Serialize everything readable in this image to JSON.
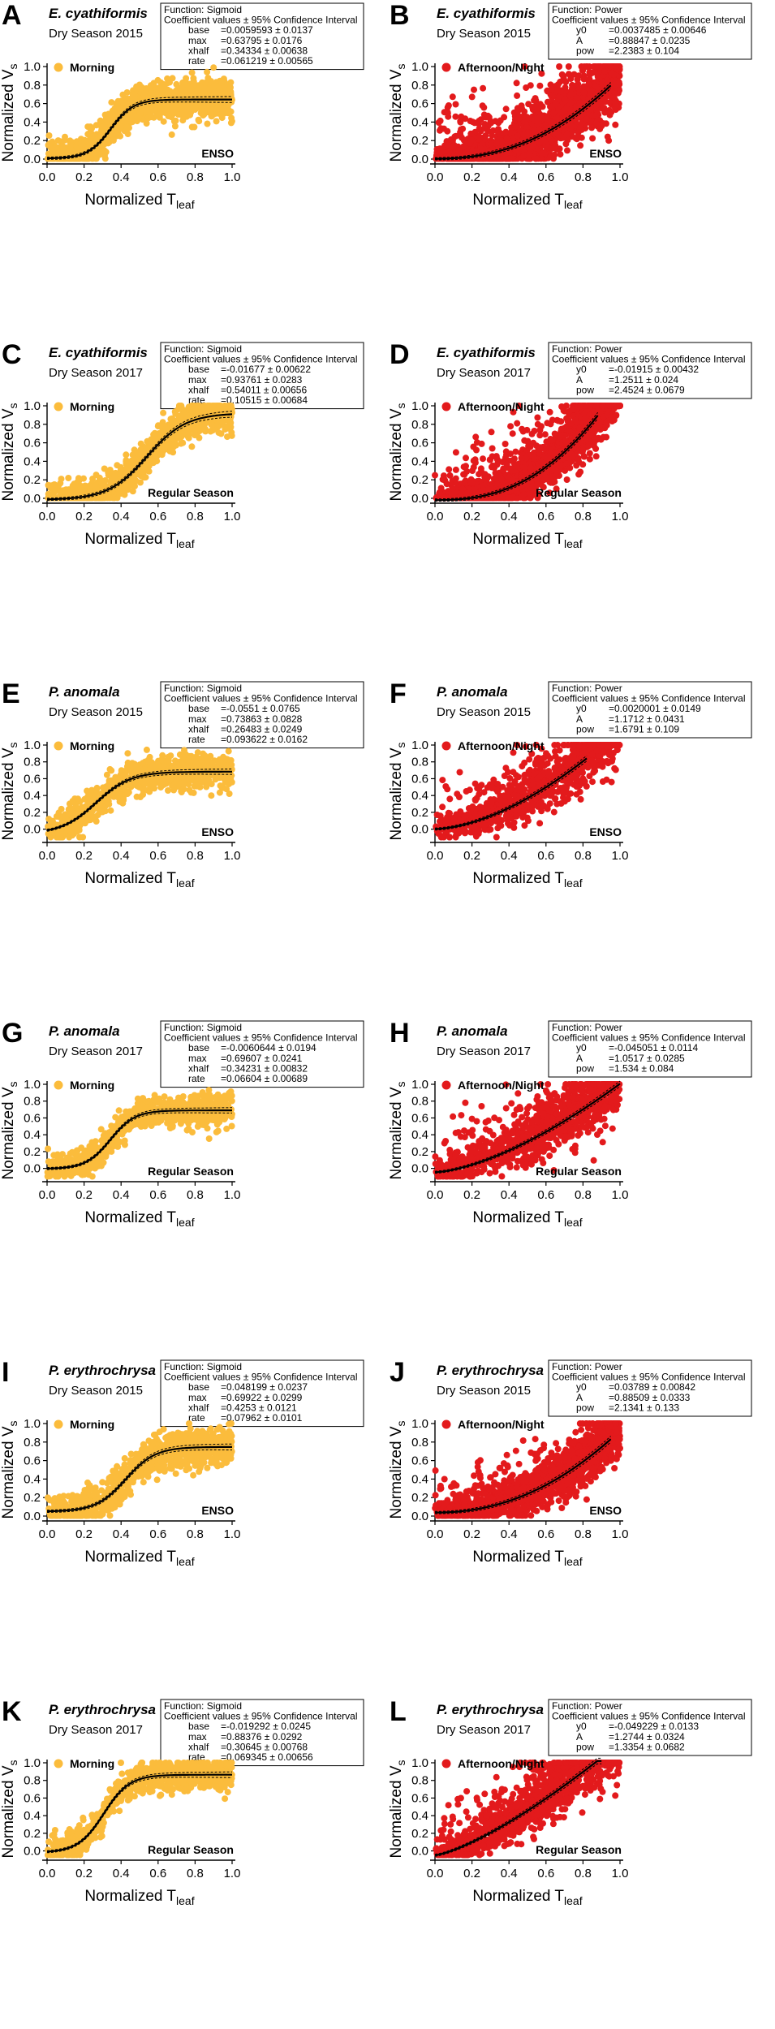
{
  "figure": {
    "xlabel_main": "Normalized T",
    "xlabel_sub": "leaf",
    "ylabel_main": "Normalized V",
    "ylabel_sub": "s",
    "fit_header": "Coefficient values ± 95% Confidence Interval",
    "colors": {
      "morning": "#fbbc3c",
      "afternoon": "#e31a1c",
      "fit": "#000000",
      "ci": "#000000"
    }
  },
  "chart_data": [
    {
      "panel": "A",
      "species": "E. cyathiformis",
      "season": "Dry Season 2015",
      "series_name": "Morning",
      "regime": "ENSO",
      "type": "scatter",
      "xlabel": "Normalized Tleaf",
      "ylabel": "Normalized Vs",
      "xlim": [
        0,
        1
      ],
      "ylim": [
        0,
        1
      ],
      "xticks": [
        "0.0",
        "0.2",
        "0.4",
        "0.6",
        "0.8",
        "1.0"
      ],
      "yticks": [
        "0.0",
        "0.2",
        "0.4",
        "0.6",
        "0.8",
        "1.0"
      ],
      "fit": {
        "function": "Sigmoid",
        "header": "Function: Sigmoid",
        "params": [
          {
            "name": "base",
            "value": "=0.0059593 ± 0.0137"
          },
          {
            "name": "max",
            "value": "=0.63795 ± 0.0176"
          },
          {
            "name": "xhalf",
            "value": "=0.34334 ± 0.00638"
          },
          {
            "name": "rate",
            "value": "=0.061219 ± 0.00565"
          }
        ],
        "coef": {
          "base": 0.0059593,
          "max": 0.63795,
          "xhalf": 0.34334,
          "rate": 0.061219
        },
        "x_range": [
          0,
          1
        ]
      },
      "scatter": {
        "n": 1300,
        "spread": 0.1,
        "seed": 11
      }
    },
    {
      "panel": "B",
      "species": "E. cyathiformis",
      "season": "Dry Season 2015",
      "series_name": "Afternoon/Night",
      "regime": "ENSO",
      "type": "scatter",
      "xlabel": "Normalized Tleaf",
      "ylabel": "Normalized Vs",
      "xlim": [
        0,
        1
      ],
      "ylim": [
        0,
        1
      ],
      "xticks": [
        "0.0",
        "0.2",
        "0.4",
        "0.6",
        "0.8",
        "1.0"
      ],
      "yticks": [
        "0.0",
        "0.2",
        "0.4",
        "0.6",
        "0.8",
        "1.0"
      ],
      "fit": {
        "function": "Power",
        "header": "Function: Power",
        "params": [
          {
            "name": "y0",
            "value": "=0.0037485 ± 0.00646"
          },
          {
            "name": "A",
            "value": "=0.88847 ± 0.0235"
          },
          {
            "name": "pow",
            "value": "=2.2383 ± 0.104"
          }
        ],
        "coef": {
          "y0": 0.0037485,
          "A": 0.88847,
          "pow": 2.2383
        },
        "x_range": [
          0,
          0.95
        ]
      },
      "scatter": {
        "n": 1800,
        "spread": 0.13,
        "seed": 22
      }
    },
    {
      "panel": "C",
      "species": "E. cyathiformis",
      "season": "Dry Season 2017",
      "series_name": "Morning",
      "regime": "Regular Season",
      "type": "scatter",
      "xlabel": "Normalized Tleaf",
      "ylabel": "Normalized Vs",
      "xlim": [
        0,
        1
      ],
      "ylim": [
        0,
        1
      ],
      "xticks": [
        "0.0",
        "0.2",
        "0.4",
        "0.6",
        "0.8",
        "1.0"
      ],
      "yticks": [
        "0.0",
        "0.2",
        "0.4",
        "0.6",
        "0.8",
        "1.0"
      ],
      "fit": {
        "function": "Sigmoid",
        "header": "Function: Sigmoid",
        "params": [
          {
            "name": "base",
            "value": "=-0.01677 ± 0.00622"
          },
          {
            "name": "max",
            "value": "=0.93761 ± 0.0283"
          },
          {
            "name": "xhalf",
            "value": "=0.54011 ± 0.00656"
          },
          {
            "name": "rate",
            "value": "=0.10515 ± 0.00684"
          }
        ],
        "coef": {
          "base": -0.01677,
          "max": 0.93761,
          "xhalf": 0.54011,
          "rate": 0.10515
        },
        "x_range": [
          0,
          1
        ]
      },
      "scatter": {
        "n": 1100,
        "spread": 0.09,
        "seed": 33
      }
    },
    {
      "panel": "D",
      "species": "E. cyathiformis",
      "season": "Dry Season 2017",
      "series_name": "Afternoon/Night",
      "regime": "Regular Season",
      "type": "scatter",
      "xlabel": "Normalized Tleaf",
      "ylabel": "Normalized Vs",
      "xlim": [
        0,
        1
      ],
      "ylim": [
        0,
        1
      ],
      "xticks": [
        "0.0",
        "0.2",
        "0.4",
        "0.6",
        "0.8",
        "1.0"
      ],
      "yticks": [
        "0.0",
        "0.2",
        "0.4",
        "0.6",
        "0.8",
        "1.0"
      ],
      "fit": {
        "function": "Power",
        "header": "Function: Power",
        "params": [
          {
            "name": "y0",
            "value": "=-0.01915 ± 0.00432"
          },
          {
            "name": "A",
            "value": "=1.2511 ± 0.024"
          },
          {
            "name": "pow",
            "value": "=2.4524 ± 0.0679"
          }
        ],
        "coef": {
          "y0": -0.01915,
          "A": 1.2511,
          "pow": 2.4524
        },
        "x_range": [
          0,
          0.88
        ]
      },
      "scatter": {
        "n": 1600,
        "spread": 0.12,
        "seed": 44
      }
    },
    {
      "panel": "E",
      "species": "P. anomala",
      "season": "Dry Season 2015",
      "series_name": "Morning",
      "regime": "ENSO",
      "type": "scatter",
      "xlabel": "Normalized Tleaf",
      "ylabel": "Normalized Vs",
      "xlim": [
        0,
        1
      ],
      "ylim": [
        -0.1,
        1
      ],
      "xticks": [
        "0.0",
        "0.2",
        "0.4",
        "0.6",
        "0.8",
        "1.0"
      ],
      "yticks": [
        "0.0",
        "0.2",
        "0.4",
        "0.6",
        "0.8",
        "1.0"
      ],
      "fit": {
        "function": "Sigmoid",
        "header": "Function: Sigmoid",
        "params": [
          {
            "name": "base",
            "value": "=-0.0551 ± 0.0765"
          },
          {
            "name": "max",
            "value": "=0.73863 ± 0.0828"
          },
          {
            "name": "xhalf",
            "value": "=0.26483 ± 0.0249"
          },
          {
            "name": "rate",
            "value": "=0.093622 ± 0.0162"
          }
        ],
        "coef": {
          "base": -0.0551,
          "max": 0.73863,
          "xhalf": 0.26483,
          "rate": 0.093622
        },
        "x_range": [
          0,
          1
        ]
      },
      "scatter": {
        "n": 900,
        "spread": 0.1,
        "seed": 55
      }
    },
    {
      "panel": "F",
      "species": "P. anomala",
      "season": "Dry Season 2015",
      "series_name": "Afternoon/Night",
      "regime": "ENSO",
      "type": "scatter",
      "xlabel": "Normalized Tleaf",
      "ylabel": "Normalized Vs",
      "xlim": [
        0,
        1
      ],
      "ylim": [
        -0.1,
        1
      ],
      "xticks": [
        "0.0",
        "0.2",
        "0.4",
        "0.6",
        "0.8",
        "1.0"
      ],
      "yticks": [
        "0.0",
        "0.2",
        "0.4",
        "0.6",
        "0.8",
        "1.0"
      ],
      "fit": {
        "function": "Power",
        "header": "Function: Power",
        "params": [
          {
            "name": "y0",
            "value": "=0.0020001 ± 0.0149"
          },
          {
            "name": "A",
            "value": "=1.1712 ± 0.0431"
          },
          {
            "name": "pow",
            "value": "=1.6791 ± 0.109"
          }
        ],
        "coef": {
          "y0": 0.0020001,
          "A": 1.1712,
          "pow": 1.6791
        },
        "x_range": [
          0,
          0.82
        ]
      },
      "scatter": {
        "n": 1000,
        "spread": 0.13,
        "seed": 66
      }
    },
    {
      "panel": "G",
      "species": "P. anomala",
      "season": "Dry Season 2017",
      "series_name": "Morning",
      "regime": "Regular Season",
      "type": "scatter",
      "xlabel": "Normalized Tleaf",
      "ylabel": "Normalized Vs",
      "xlim": [
        0,
        1
      ],
      "ylim": [
        -0.1,
        1
      ],
      "xticks": [
        "0.0",
        "0.2",
        "0.4",
        "0.6",
        "0.8",
        "1.0"
      ],
      "yticks": [
        "0.0",
        "0.2",
        "0.4",
        "0.6",
        "0.8",
        "1.0"
      ],
      "fit": {
        "function": "Sigmoid",
        "header": "Function: Sigmoid",
        "params": [
          {
            "name": "base",
            "value": "=-0.0060644 ± 0.0194"
          },
          {
            "name": "max",
            "value": "=0.69607 ± 0.0241"
          },
          {
            "name": "xhalf",
            "value": "=0.34231 ± 0.00832"
          },
          {
            "name": "rate",
            "value": "=0.06604 ± 0.00689"
          }
        ],
        "coef": {
          "base": -0.0060644,
          "max": 0.69607,
          "xhalf": 0.34231,
          "rate": 0.06604
        },
        "x_range": [
          0,
          1
        ]
      },
      "scatter": {
        "n": 800,
        "spread": 0.09,
        "seed": 77
      }
    },
    {
      "panel": "H",
      "species": "P. anomala",
      "season": "Dry Season 2017",
      "series_name": "Afternoon/Night",
      "regime": "Regular Season",
      "type": "scatter",
      "xlabel": "Normalized Tleaf",
      "ylabel": "Normalized Vs",
      "xlim": [
        0,
        1
      ],
      "ylim": [
        -0.1,
        1
      ],
      "xticks": [
        "0.0",
        "0.2",
        "0.4",
        "0.6",
        "0.8",
        "1.0"
      ],
      "yticks": [
        "0.0",
        "0.2",
        "0.4",
        "0.6",
        "0.8",
        "1.0"
      ],
      "fit": {
        "function": "Power",
        "header": "Function: Power",
        "params": [
          {
            "name": "y0",
            "value": "=-0.045051 ± 0.0114"
          },
          {
            "name": "A",
            "value": "=1.0517 ± 0.0285"
          },
          {
            "name": "pow",
            "value": "=1.534 ± 0.084"
          }
        ],
        "coef": {
          "y0": -0.045051,
          "A": 1.0517,
          "pow": 1.534
        },
        "x_range": [
          0,
          1
        ]
      },
      "scatter": {
        "n": 1000,
        "spread": 0.15,
        "seed": 88
      }
    },
    {
      "panel": "I",
      "species": "P. erythrochrysa",
      "season": "Dry Season 2015",
      "series_name": "Morning",
      "regime": "ENSO",
      "type": "scatter",
      "xlabel": "Normalized Tleaf",
      "ylabel": "Normalized Vs",
      "xlim": [
        0,
        1
      ],
      "ylim": [
        0,
        1
      ],
      "xticks": [
        "0.0",
        "0.2",
        "0.4",
        "0.6",
        "0.8",
        "1.0"
      ],
      "yticks": [
        "0.0",
        "0.2",
        "0.4",
        "0.6",
        "0.8",
        "1.0"
      ],
      "fit": {
        "function": "Sigmoid",
        "header": "Function: Sigmoid",
        "params": [
          {
            "name": "base",
            "value": "=0.048199 ± 0.0237"
          },
          {
            "name": "max",
            "value": "=0.69922 ± 0.0299"
          },
          {
            "name": "xhalf",
            "value": "=0.4253 ± 0.0121"
          },
          {
            "name": "rate",
            "value": "=0.07962 ± 0.0101"
          }
        ],
        "coef": {
          "base": 0.048199,
          "max": 0.69922,
          "xhalf": 0.4253,
          "rate": 0.07962
        },
        "x_range": [
          0,
          1
        ]
      },
      "scatter": {
        "n": 1000,
        "spread": 0.1,
        "seed": 99
      }
    },
    {
      "panel": "J",
      "species": "P. erythrochrysa",
      "season": "Dry Season 2015",
      "series_name": "Afternoon/Night",
      "regime": "ENSO",
      "type": "scatter",
      "xlabel": "Normalized Tleaf",
      "ylabel": "Normalized Vs",
      "xlim": [
        0,
        1
      ],
      "ylim": [
        0,
        1
      ],
      "xticks": [
        "0.0",
        "0.2",
        "0.4",
        "0.6",
        "0.8",
        "1.0"
      ],
      "yticks": [
        "0.0",
        "0.2",
        "0.4",
        "0.6",
        "0.8",
        "1.0"
      ],
      "fit": {
        "function": "Power",
        "header": "Function: Power",
        "params": [
          {
            "name": "y0",
            "value": "=0.03789 ± 0.00842"
          },
          {
            "name": "A",
            "value": "=0.88509 ± 0.0333"
          },
          {
            "name": "pow",
            "value": "=2.1341 ± 0.133"
          }
        ],
        "coef": {
          "y0": 0.03789,
          "A": 0.88509,
          "pow": 2.1341
        },
        "x_range": [
          0,
          0.95
        ]
      },
      "scatter": {
        "n": 1500,
        "spread": 0.1,
        "seed": 111
      }
    },
    {
      "panel": "K",
      "species": "P. erythrochrysa",
      "season": "Dry Season 2017",
      "series_name": "Morning",
      "regime": "Regular Season",
      "type": "scatter",
      "xlabel": "Normalized Tleaf",
      "ylabel": "Normalized Vs",
      "xlim": [
        0,
        1
      ],
      "ylim": [
        -0.05,
        1
      ],
      "xticks": [
        "0.0",
        "0.2",
        "0.4",
        "0.6",
        "0.8",
        "1.0"
      ],
      "yticks": [
        "0.0",
        "0.2",
        "0.4",
        "0.6",
        "0.8",
        "1.0"
      ],
      "fit": {
        "function": "Sigmoid",
        "header": "Function: Sigmoid",
        "params": [
          {
            "name": "base",
            "value": "=-0.019292 ± 0.0245"
          },
          {
            "name": "max",
            "value": "=0.88376 ± 0.0292"
          },
          {
            "name": "xhalf",
            "value": "=0.30645 ± 0.00768"
          },
          {
            "name": "rate",
            "value": "=0.069345 ± 0.00656"
          }
        ],
        "coef": {
          "base": -0.019292,
          "max": 0.88376,
          "xhalf": 0.30645,
          "rate": 0.069345
        },
        "x_range": [
          0,
          1
        ]
      },
      "scatter": {
        "n": 900,
        "spread": 0.09,
        "seed": 122
      }
    },
    {
      "panel": "L",
      "species": "P. erythrochrysa",
      "season": "Dry Season 2017",
      "series_name": "Afternoon/Night",
      "regime": "Regular Season",
      "type": "scatter",
      "xlabel": "Normalized Tleaf",
      "ylabel": "Normalized Vs",
      "xlim": [
        0,
        1
      ],
      "ylim": [
        -0.05,
        1
      ],
      "xticks": [
        "0.0",
        "0.2",
        "0.4",
        "0.6",
        "0.8",
        "1.0"
      ],
      "yticks": [
        "0.0",
        "0.2",
        "0.4",
        "0.6",
        "0.8",
        "1.0"
      ],
      "fit": {
        "function": "Power",
        "header": "Function: Power",
        "params": [
          {
            "name": "y0",
            "value": "=-0.049229 ± 0.0133"
          },
          {
            "name": "A",
            "value": "=1.2744 ± 0.0324"
          },
          {
            "name": "pow",
            "value": "=1.3354 ± 0.0682"
          }
        ],
        "coef": {
          "y0": -0.049229,
          "A": 1.2744,
          "pow": 1.3354
        },
        "x_range": [
          0,
          0.9
        ]
      },
      "scatter": {
        "n": 1200,
        "spread": 0.12,
        "seed": 133
      }
    }
  ]
}
